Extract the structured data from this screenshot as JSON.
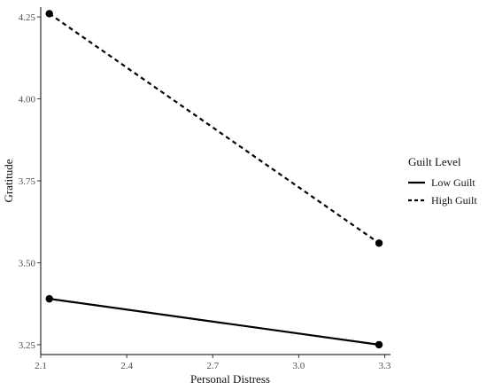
{
  "chart_data": {
    "type": "line",
    "xlabel": "Personal Distress",
    "ylabel": "Gratitude",
    "xlim": [
      2.1,
      3.32
    ],
    "ylim": [
      3.22,
      4.28
    ],
    "x_ticks": [
      2.1,
      2.4,
      2.7,
      3.0,
      3.3
    ],
    "x_tick_labels": [
      "2.1",
      "2.4",
      "2.7",
      "3.0",
      "3.3"
    ],
    "y_ticks": [
      3.25,
      3.5,
      3.75,
      4.0,
      4.25
    ],
    "y_tick_labels": [
      "3.25",
      "3.50",
      "3.75",
      "4.00",
      "4.25"
    ],
    "grid": false,
    "legend": {
      "title": "Guilt Level",
      "placement": "right"
    },
    "series": [
      {
        "name": "Low Guilt",
        "style": "solid",
        "x": [
          2.13,
          3.28
        ],
        "y": [
          3.39,
          3.25
        ]
      },
      {
        "name": "High Guilt",
        "style": "dashed",
        "x": [
          2.13,
          3.28
        ],
        "y": [
          4.26,
          3.56
        ]
      }
    ]
  }
}
